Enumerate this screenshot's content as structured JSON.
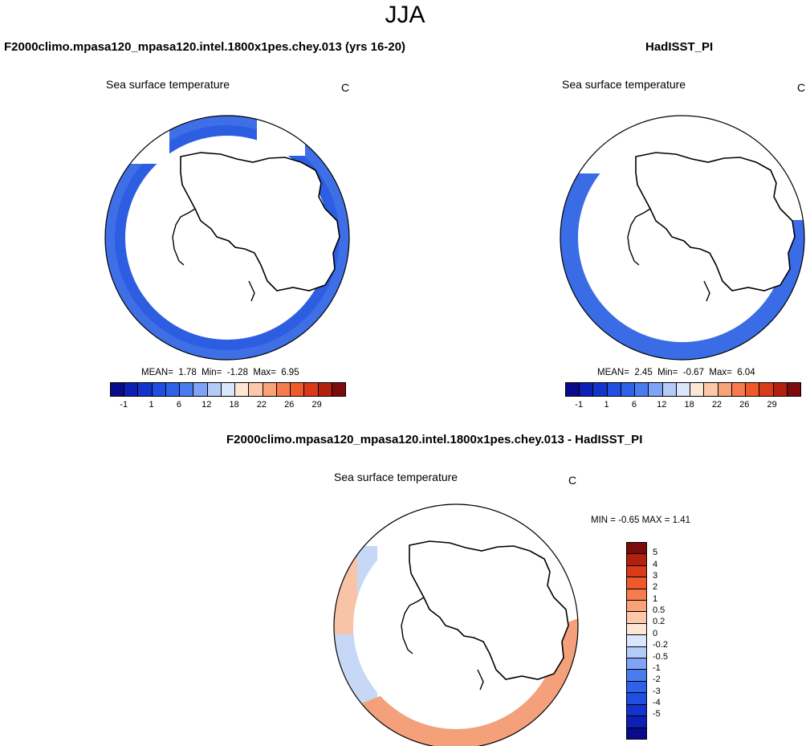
{
  "title": "JJA",
  "panels": [
    {
      "title": "F2000climo.mpasa120_mpasa120.intel.1800x1pes.chey.013 (yrs 16-20)",
      "subtitle": "Sea surface temperature",
      "units": "C",
      "mean_label": "MEAN=",
      "mean": "1.78",
      "min_label": "Min=",
      "min": "-1.28",
      "max_label": "Max=",
      "max": "6.95"
    },
    {
      "title": "HadISST_PI",
      "subtitle": "Sea surface temperature",
      "units": "C",
      "mean_label": "MEAN=",
      "mean": "2.45",
      "min_label": "Min=",
      "min": "-0.67",
      "max_label": "Max=",
      "max": "6.04"
    },
    {
      "title": "F2000climo.mpasa120_mpasa120.intel.1800x1pes.chey.013 - HadISST_PI",
      "subtitle": "Sea surface temperature",
      "units": "C",
      "minmax_text": "MIN =  -0.65 MAX =  1.41"
    }
  ],
  "sst_colorbar": {
    "colors": [
      "#0a0a8c",
      "#0d1fb4",
      "#1334cc",
      "#1f4ee0",
      "#2e62ea",
      "#4a7cf0",
      "#7fa3f5",
      "#b4cbf8",
      "#dae6fb",
      "#fde6d6",
      "#fcc8aa",
      "#f9a278",
      "#f67c4e",
      "#f05a2a",
      "#d93a1a",
      "#b42010",
      "#7c0c0c"
    ],
    "ticks": [
      "-1",
      "1",
      "6",
      "12",
      "18",
      "22",
      "26",
      "29"
    ]
  },
  "diff_colorbar": {
    "colors": [
      "#7c0c0c",
      "#b42010",
      "#d93a1a",
      "#f05a2a",
      "#f67c4e",
      "#f9a278",
      "#fcc8aa",
      "#fde6d6",
      "#dae6fb",
      "#b4cbf8",
      "#7fa3f5",
      "#4a7cf0",
      "#2e62ea",
      "#1f4ee0",
      "#1334cc",
      "#0d1fb4",
      "#0a0a8c"
    ],
    "ticks": [
      "5",
      "4",
      "3",
      "2",
      "1",
      "0.5",
      "0.2",
      "0",
      "-0.2",
      "-0.5",
      "-1",
      "-2",
      "-3",
      "-4",
      "-5"
    ]
  }
}
